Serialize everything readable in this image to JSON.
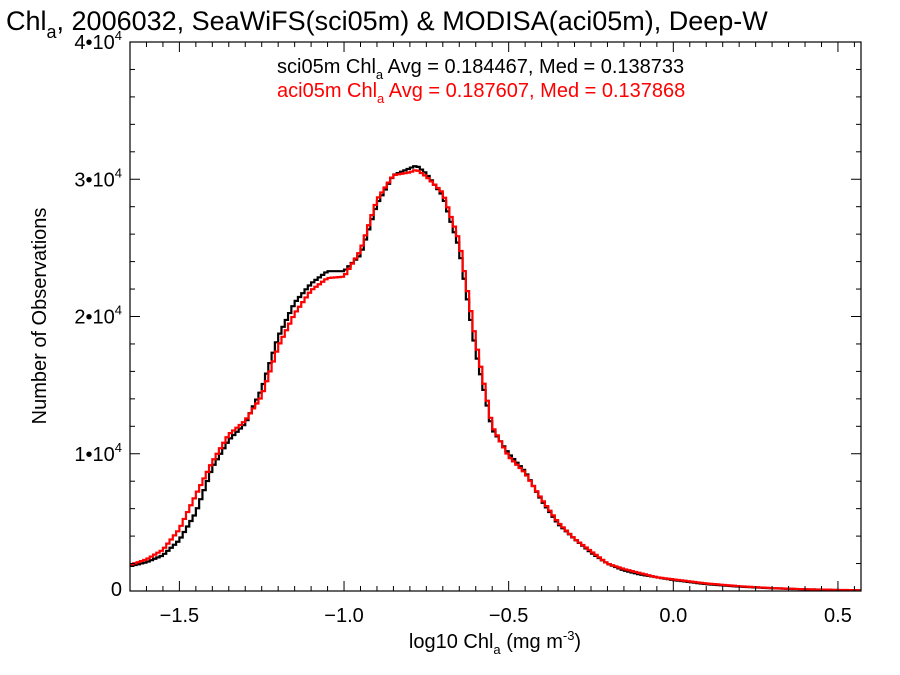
{
  "chart_data": {
    "type": "line",
    "title": {
      "pre": "Chl",
      "sub": "a",
      "post": ", 2006032, SeaWiFS(sci05m) & MODISA(aci05m), Deep-W"
    },
    "xlabel": {
      "pre": "log10 Chl",
      "sub": "a",
      "post": " (mg m",
      "sup": "-3",
      "end": ")"
    },
    "ylabel": "Number of Observations",
    "xlim": [
      -1.65,
      0.57
    ],
    "ylim": [
      0,
      40000
    ],
    "x_ticks": [
      {
        "value": -1.5,
        "label": "−1.5"
      },
      {
        "value": -1.0,
        "label": "−1.0"
      },
      {
        "value": -0.5,
        "label": "−0.5"
      },
      {
        "value": 0.0,
        "label": "0.0"
      },
      {
        "value": 0.5,
        "label": "0.5"
      }
    ],
    "y_ticks": [
      {
        "value": 0,
        "label": "0",
        "exp": ""
      },
      {
        "value": 10000,
        "label": "1•10",
        "exp": "4"
      },
      {
        "value": 20000,
        "label": "2•10",
        "exp": "4"
      },
      {
        "value": 30000,
        "label": "3•10",
        "exp": "4"
      },
      {
        "value": 40000,
        "label": "4•10",
        "exp": "4"
      }
    ],
    "legend_placement": "top-center",
    "series": [
      {
        "name": "sci05m",
        "color": "#000000",
        "stats": {
          "pre": "sci05m Chl",
          "sub": "a",
          "post": " Avg = 0.184467, Med = 0.138733"
        },
        "x": [
          -1.65,
          -1.6,
          -1.55,
          -1.5,
          -1.45,
          -1.4,
          -1.35,
          -1.3,
          -1.25,
          -1.2,
          -1.15,
          -1.1,
          -1.05,
          -1.0,
          -0.95,
          -0.9,
          -0.85,
          -0.8,
          -0.78,
          -0.75,
          -0.7,
          -0.65,
          -0.6,
          -0.55,
          -0.5,
          -0.45,
          -0.4,
          -0.35,
          -0.3,
          -0.25,
          -0.2,
          -0.15,
          -0.1,
          -0.05,
          0.0,
          0.05,
          0.1,
          0.2,
          0.3,
          0.4,
          0.5,
          0.57
        ],
        "y": [
          1800,
          2100,
          2600,
          3700,
          5700,
          9000,
          11000,
          12200,
          14700,
          18500,
          21000,
          22400,
          23300,
          23300,
          24500,
          28200,
          30300,
          30800,
          31000,
          30400,
          28800,
          25000,
          17500,
          11800,
          10000,
          8700,
          6600,
          4900,
          3800,
          2800,
          2000,
          1500,
          1200,
          1000,
          800,
          650,
          500,
          320,
          200,
          120,
          70,
          50
        ]
      },
      {
        "name": "aci05m",
        "color": "#ff0000",
        "stats": {
          "pre": "aci05m Chl",
          "sub": "a",
          "post": " Avg = 0.187607, Med = 0.137868"
        },
        "x": [
          -1.65,
          -1.6,
          -1.55,
          -1.5,
          -1.45,
          -1.4,
          -1.35,
          -1.3,
          -1.25,
          -1.2,
          -1.15,
          -1.1,
          -1.05,
          -1.0,
          -0.95,
          -0.9,
          -0.85,
          -0.8,
          -0.78,
          -0.75,
          -0.7,
          -0.65,
          -0.6,
          -0.55,
          -0.5,
          -0.45,
          -0.4,
          -0.35,
          -0.3,
          -0.25,
          -0.2,
          -0.15,
          -0.1,
          -0.05,
          0.0,
          0.05,
          0.1,
          0.2,
          0.3,
          0.4,
          0.5,
          0.57
        ],
        "y": [
          1900,
          2300,
          3000,
          4500,
          7000,
          9400,
          11400,
          12400,
          14200,
          17800,
          20200,
          21900,
          22800,
          22900,
          24800,
          28500,
          30300,
          30500,
          30700,
          30200,
          29000,
          25500,
          18200,
          12000,
          9800,
          8600,
          6700,
          5000,
          3800,
          2900,
          2000,
          1600,
          1300,
          1000,
          850,
          700,
          550,
          350,
          210,
          130,
          80,
          55
        ]
      }
    ]
  }
}
